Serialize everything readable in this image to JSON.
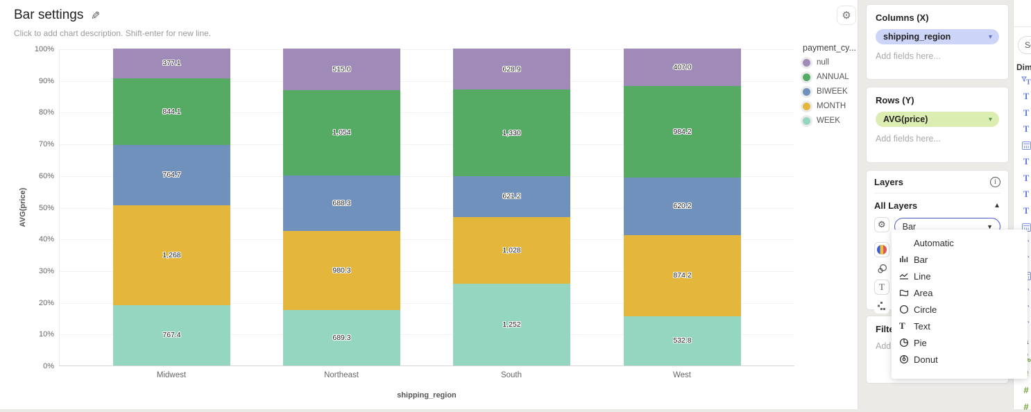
{
  "chart_card": {
    "title": "Bar settings",
    "description_placeholder": "Click to add chart description. Shift-enter for new line.",
    "gear_icon": "gear",
    "pencil_icon": "pencil"
  },
  "chart_data": {
    "type": "bar",
    "variant": "100%-stacked-vertical",
    "categories": [
      "Midwest",
      "Northeast",
      "South",
      "West"
    ],
    "series": [
      {
        "name": "WEEK",
        "color": "#95d6c0",
        "values": [
          767.4,
          689.3,
          1252,
          532.8
        ],
        "labels": [
          "767.4",
          "689.3",
          "1,252",
          "532.8"
        ]
      },
      {
        "name": "MONTH",
        "color": "#e5b63c",
        "values": [
          1268,
          980.3,
          1028,
          874.2
        ],
        "labels": [
          "1,268",
          "980.3",
          "1,028",
          "874.2"
        ]
      },
      {
        "name": "BIWEEK",
        "color": "#7191bd",
        "values": [
          764.7,
          688.3,
          621.2,
          620.2
        ],
        "labels": [
          "764.7",
          "688.3",
          "621.2",
          "620.2"
        ]
      },
      {
        "name": "ANNUAL",
        "color": "#55ab64",
        "values": [
          844.1,
          1054,
          1330,
          984.2
        ],
        "labels": [
          "844.1",
          "1,054",
          "1,330",
          "984.2"
        ]
      },
      {
        "name": "null",
        "color": "#a08bb8",
        "values": [
          377.1,
          515.0,
          628.9,
          407.0
        ],
        "labels": [
          "377.1",
          "515.0",
          "628.9",
          "407.0"
        ]
      }
    ],
    "xlabel": "shipping_region",
    "ylabel": "AVG(price)",
    "y_ticks": [
      "0%",
      "10%",
      "20%",
      "30%",
      "40%",
      "50%",
      "60%",
      "70%",
      "80%",
      "90%",
      "100%"
    ],
    "ylim": [
      0,
      100
    ],
    "grid": true,
    "legend": {
      "title": "payment_cy...",
      "position": "right",
      "order": [
        "null",
        "ANNUAL",
        "BIWEEK",
        "MONTH",
        "WEEK"
      ]
    }
  },
  "settings_panel": {
    "columns": {
      "title": "Columns (X)",
      "pill_label": "shipping_region",
      "pill_bg": "#ccd4f7",
      "pill_caret_color": "#5a6acf",
      "placeholder": "Add fields here..."
    },
    "rows": {
      "title": "Rows (Y)",
      "pill_label": "AVG(price)",
      "pill_bg": "#dcedb2",
      "pill_caret_color": "#4e9a4e",
      "placeholder": "Add fields here..."
    },
    "layers": {
      "title": "Layers",
      "info_icon": "i",
      "all_layers_label": "All Layers",
      "collapse_caret": "▲",
      "type_select_value": "Bar",
      "tool_icons": [
        "gear-icon",
        "palette-icon",
        "overlapping-circles-icon",
        "text-style-icon",
        "layout-squares-icon"
      ]
    },
    "type_menu": {
      "items": [
        {
          "label": "Automatic",
          "icon": "none"
        },
        {
          "label": "Bar",
          "icon": "bar"
        },
        {
          "label": "Line",
          "icon": "line"
        },
        {
          "label": "Area",
          "icon": "area"
        },
        {
          "label": "Circle",
          "icon": "circle"
        },
        {
          "label": "Text",
          "icon": "text"
        },
        {
          "label": "Pie",
          "icon": "pie"
        },
        {
          "label": "Donut",
          "icon": "donut"
        }
      ]
    },
    "filter": {
      "title": "Filter",
      "placeholder": "Add fields here..."
    }
  },
  "fields_panel": {
    "search_visible_text": "Se",
    "dimensions_visible_text": "Dim",
    "field_icons": [
      "funnel-T",
      "T",
      "T",
      "T",
      "calendar",
      "T",
      "T",
      "T",
      "T",
      "calendar",
      "T",
      "T",
      "calendar",
      "T",
      "T",
      "T",
      "label-a",
      "branch",
      "hash",
      "hash",
      "hash"
    ]
  }
}
